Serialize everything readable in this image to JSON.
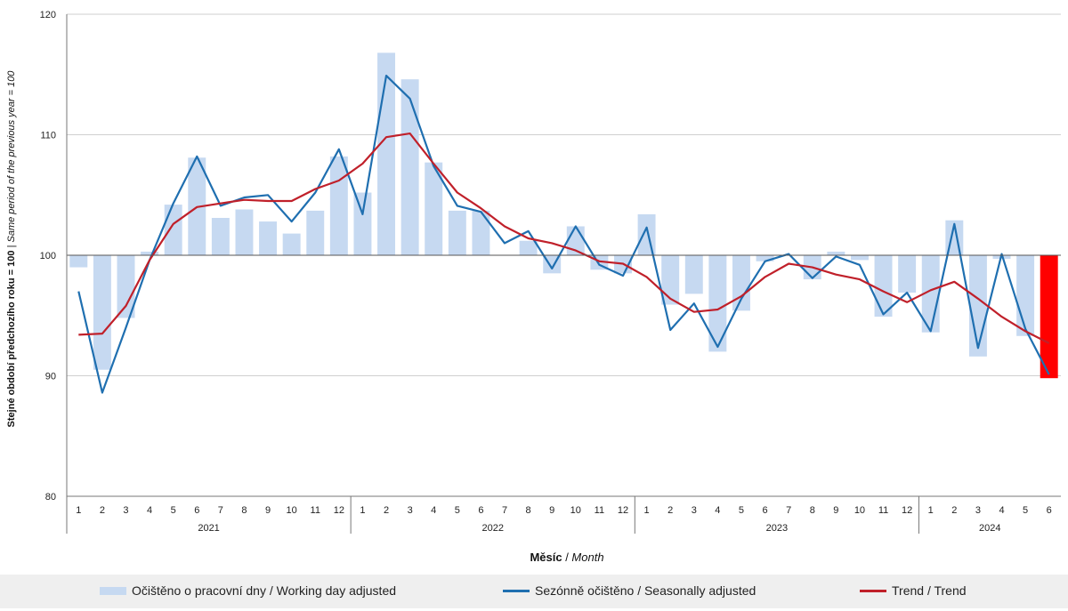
{
  "chart_data": {
    "type": "bar",
    "ylabel_bold": "Stejné období předchozího roku = 100",
    "ylabel_sep": " | ",
    "ylabel_italic": "Same period of  the previous year = 100",
    "xlabel_bold": "Měsíc",
    "xlabel_sep": " / ",
    "xlabel_italic": "Month",
    "ylim": [
      80,
      120
    ],
    "yticks": [
      80,
      90,
      100,
      110,
      120
    ],
    "baseline": 100,
    "grid": true,
    "legend_position": "bottom",
    "colors": {
      "bars": "#c6d9f1",
      "highlight_bar": "#ff0000",
      "seasonally_adjusted": "#1f6fb0",
      "trend": "#c0202a",
      "grid": "#cfcfcf"
    },
    "years": [
      {
        "label": "2021",
        "months": 12
      },
      {
        "label": "2022",
        "months": 12
      },
      {
        "label": "2023",
        "months": 12
      },
      {
        "label": "2024",
        "months": 6
      }
    ],
    "months": [
      "1",
      "2",
      "3",
      "4",
      "5",
      "6",
      "7",
      "8",
      "9",
      "10",
      "11",
      "12",
      "1",
      "2",
      "3",
      "4",
      "5",
      "6",
      "7",
      "8",
      "9",
      "10",
      "11",
      "12",
      "1",
      "2",
      "3",
      "4",
      "5",
      "6",
      "7",
      "8",
      "9",
      "10",
      "11",
      "12",
      "1",
      "2",
      "3",
      "4",
      "5",
      "6"
    ],
    "highlight_last": true,
    "series": [
      {
        "name": "Očištěno o pracovní dny / Working day adjusted",
        "kind": "bar",
        "values": [
          99.0,
          90.5,
          94.8,
          100.3,
          104.2,
          108.1,
          103.1,
          103.8,
          102.8,
          101.8,
          103.7,
          108.2,
          105.2,
          116.8,
          114.6,
          107.7,
          103.7,
          103.7,
          100.0,
          101.2,
          98.5,
          102.4,
          98.8,
          98.5,
          103.4,
          95.9,
          96.8,
          92.0,
          95.4,
          99.5,
          100.0,
          98.0,
          100.3,
          99.6,
          94.9,
          96.9,
          93.6,
          102.9,
          91.6,
          99.7,
          93.3,
          89.8
        ]
      },
      {
        "name": "Sezónně očištěno / Seasonally adjusted",
        "kind": "line",
        "values": [
          97.0,
          88.6,
          94.0,
          99.6,
          104.3,
          108.2,
          104.1,
          104.8,
          105.0,
          102.8,
          105.2,
          108.8,
          103.4,
          114.9,
          113.0,
          107.4,
          104.1,
          103.6,
          101.0,
          102.0,
          98.9,
          102.4,
          99.2,
          98.3,
          102.3,
          93.8,
          96.0,
          92.4,
          96.4,
          99.5,
          100.1,
          98.1,
          99.9,
          99.2,
          95.1,
          96.9,
          93.7,
          102.6,
          92.3,
          100.1,
          93.9,
          90.1
        ]
      },
      {
        "name": "Trend / Trend",
        "kind": "line",
        "values": [
          93.4,
          93.5,
          95.8,
          99.6,
          102.6,
          104.0,
          104.3,
          104.6,
          104.5,
          104.5,
          105.5,
          106.2,
          107.6,
          109.8,
          110.1,
          107.6,
          105.2,
          103.9,
          102.4,
          101.4,
          101.0,
          100.4,
          99.5,
          99.3,
          98.2,
          96.4,
          95.3,
          95.5,
          96.6,
          98.2,
          99.3,
          99.0,
          98.4,
          98.0,
          97.0,
          96.1,
          97.1,
          97.8,
          96.4,
          94.9,
          93.7,
          92.7
        ]
      }
    ]
  }
}
